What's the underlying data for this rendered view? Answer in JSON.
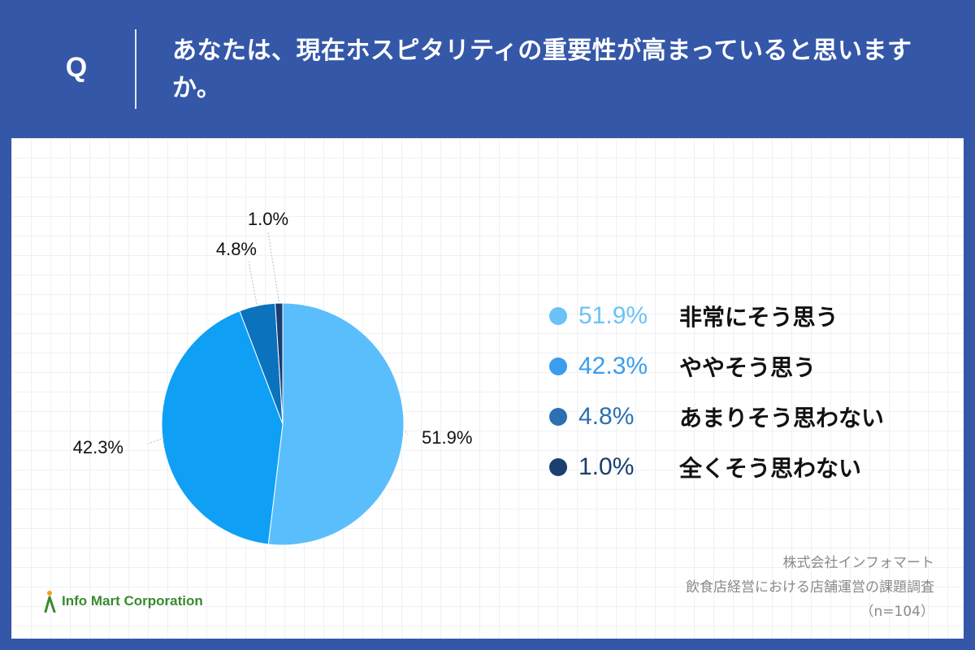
{
  "header": {
    "q_letter": "Q",
    "question": "あなたは、現在ホスピタリティの重要性が高まっていると思いますか。"
  },
  "chart_data": {
    "type": "pie",
    "categories": [
      "非常にそう思う",
      "ややそう思う",
      "あまりそう思わない",
      "全くそう思わない"
    ],
    "values": [
      51.9,
      42.3,
      4.8,
      1.0
    ],
    "value_labels": [
      "51.9%",
      "42.3%",
      "4.8%",
      "1.0%"
    ],
    "colors": [
      "#5bbefc",
      "#0fa0f5",
      "#0b72bd",
      "#183e73"
    ],
    "legend_colors": [
      "#6cc2f7",
      "#3a9ded",
      "#2d6fb3",
      "#1b3f6e"
    ],
    "legend_placement": "right",
    "start_angle": "12 o'clock",
    "direction": "clockwise"
  },
  "legend": {
    "items": [
      {
        "pct": "51.9%",
        "label": "非常にそう思う"
      },
      {
        "pct": "42.3%",
        "label": "ややそう思う"
      },
      {
        "pct": "4.8%",
        "label": "あまりそう思わない"
      },
      {
        "pct": "1.0%",
        "label": "全くそう思わない"
      }
    ]
  },
  "footer": {
    "logo_text": "Info Mart Corporation",
    "source_line1": "株式会社インフォマート",
    "source_line2": "飲食店経営における店舗運営の課題調査",
    "source_line3": "（n=104）"
  }
}
